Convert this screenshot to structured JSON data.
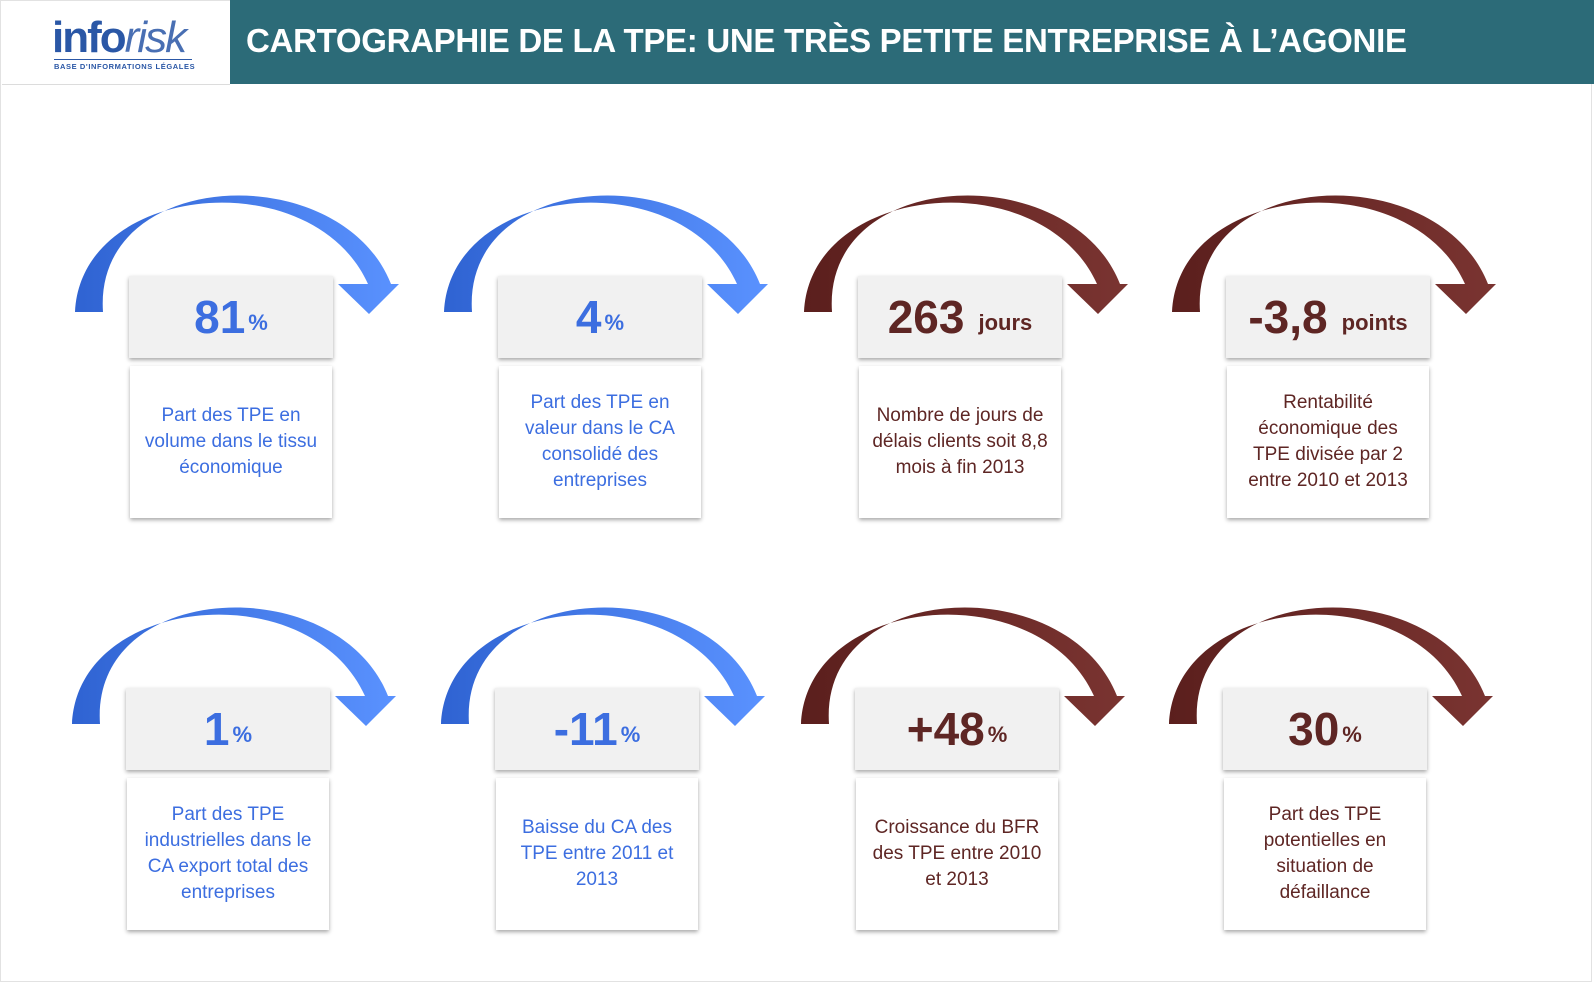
{
  "header": {
    "logo_info": "info",
    "logo_risk": "risk",
    "logo_tagline": "BASE D'INFORMATIONS LÉGALES",
    "title": "CARTOGRAPHIE DE LA TPE: UNE TRÈS PETITE ENTREPRISE À L’AGONIE"
  },
  "colors": {
    "header_bar": "#2c6b78",
    "blue": "#3c6ee0",
    "dark_red": "#5e2624"
  },
  "stats": [
    {
      "value": "81",
      "unit": "%",
      "description": "Part des TPE en volume dans le tissu économique",
      "theme": "blue"
    },
    {
      "value": "4",
      "unit": "%",
      "description": "Part des TPE en valeur dans le CA consolidé des entreprises",
      "theme": "blue"
    },
    {
      "value": "263",
      "unit": "jours",
      "description": "Nombre de jours de délais clients soit 8,8 mois à fin 2013",
      "theme": "red"
    },
    {
      "value": "-3,8",
      "unit": "points",
      "description": "Rentabilité économique des TPE divisée par 2 entre 2010 et 2013",
      "theme": "red"
    },
    {
      "value": "1",
      "unit": "%",
      "description": "Part des TPE industrielles dans le CA export total des entreprises",
      "theme": "blue"
    },
    {
      "value": "-11",
      "unit": "%",
      "description": "Baisse du CA des TPE entre 2011 et 2013",
      "theme": "blue"
    },
    {
      "value": "+48",
      "unit": "%",
      "description": "Croissance du BFR des TPE entre 2010 et 2013",
      "theme": "red"
    },
    {
      "value": "30",
      "unit": "%",
      "description": "Part des TPE potentielles en situation de défaillance",
      "theme": "red"
    }
  ]
}
